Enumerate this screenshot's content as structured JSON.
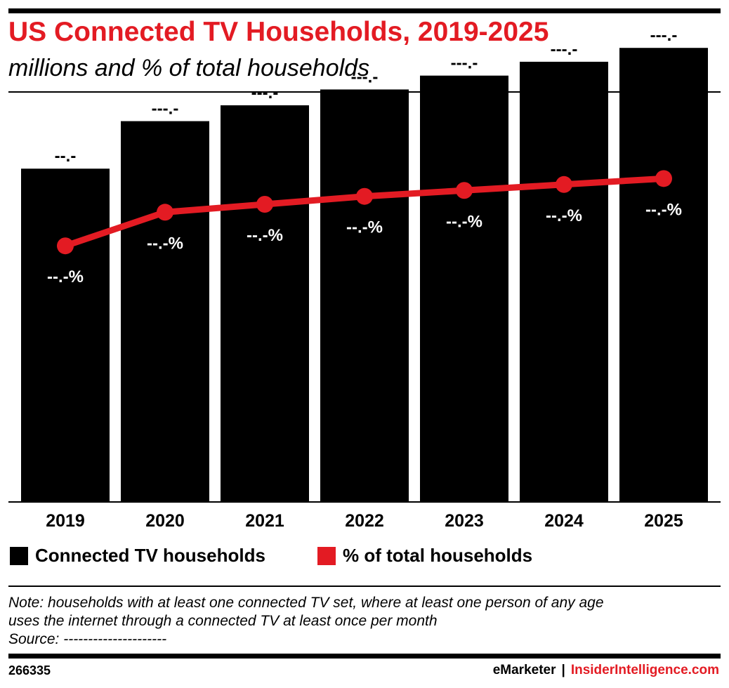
{
  "header": {
    "title": "US Connected TV Households, 2019-2025",
    "subtitle": "millions and % of total households"
  },
  "legend": {
    "bars_label": "Connected TV households",
    "line_label": "% of total households"
  },
  "colors": {
    "accent": "#e31b23",
    "bar": "#000000",
    "value_label_on_bar": "#ffffff"
  },
  "chart_data": {
    "type": "bar",
    "categories": [
      "2019",
      "2020",
      "2021",
      "2022",
      "2023",
      "2024",
      "2025"
    ],
    "series": [
      {
        "name": "Connected TV households",
        "type": "bar",
        "values": [
          84,
          96,
          100,
          104,
          107.5,
          111,
          114.5
        ],
        "labels": [
          "--.-",
          "---.-",
          "---.-",
          "---.-",
          "---.-",
          "---.-",
          "---.-"
        ]
      },
      {
        "name": "% of total households",
        "type": "line",
        "values": [
          64.5,
          73,
          75,
          77,
          78.5,
          80,
          81.5
        ],
        "labels": [
          "--.-%",
          "--.-%",
          "--.-%",
          "--.-%",
          "--.-%",
          "--.-%",
          "--.-%"
        ]
      }
    ],
    "ylim_bars": [
      0,
      200
    ],
    "ylim_line": [
      0,
      100
    ],
    "grid": false,
    "legend_position": "bottom-left"
  },
  "notes": {
    "note_line1": "Note: households with at least one connected TV set, where at least one person of any age",
    "note_line2": "uses the internet through a connected TV at least once per month",
    "source": "Source: ---------------------"
  },
  "footer": {
    "chart_id": "266335",
    "brand_left": "eMarketer",
    "separator": "|",
    "brand_right": "InsiderIntelligence.com"
  }
}
